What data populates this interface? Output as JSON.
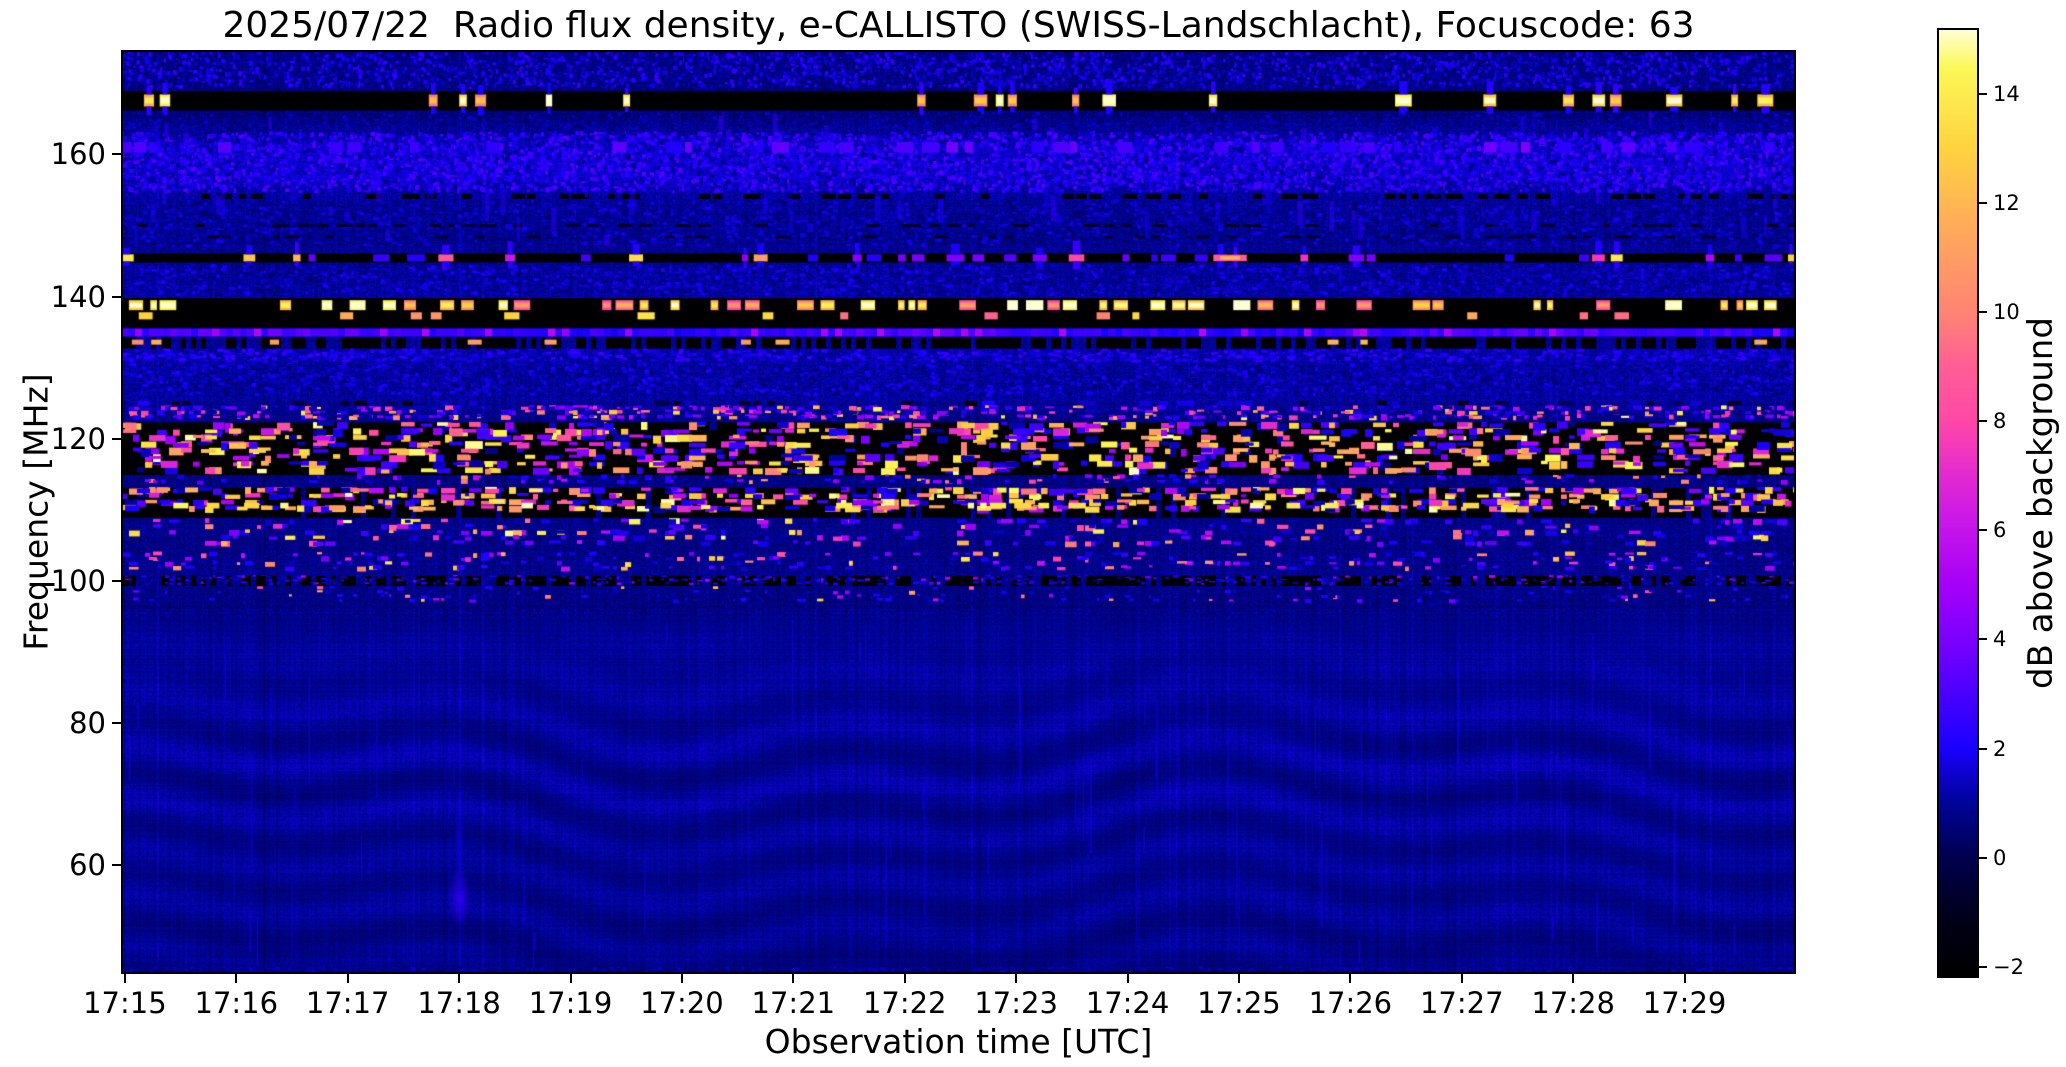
{
  "chart_data": {
    "type": "heatmap",
    "subtype": "radio-spectrogram",
    "title": "2025/07/22  Radio flux density, e-CALLISTO (SWISS-Landschlacht), Focuscode: 63",
    "xlabel": "Observation time [UTC]",
    "ylabel": "Frequency [MHz]",
    "x_ticks": [
      "17:15",
      "17:16",
      "17:17",
      "17:18",
      "17:19",
      "17:20",
      "17:21",
      "17:22",
      "17:23",
      "17:24",
      "17:25",
      "17:26",
      "17:27",
      "17:28",
      "17:29"
    ],
    "xlim_minutes_from_1715": [
      -0.035,
      15.0
    ],
    "y_ticks": [
      160,
      140,
      120,
      100,
      80,
      60
    ],
    "ylim_mhz": [
      44.7,
      174.7
    ],
    "grid": false,
    "colorbar": {
      "label": "dB above background",
      "ticks": [
        {
          "value": -2,
          "label": "−2"
        },
        {
          "value": 0,
          "label": "0"
        },
        {
          "value": 2,
          "label": "2"
        },
        {
          "value": 4,
          "label": "4"
        },
        {
          "value": 6,
          "label": "6"
        },
        {
          "value": 8,
          "label": "8"
        },
        {
          "value": 10,
          "label": "10"
        },
        {
          "value": 12,
          "label": "12"
        },
        {
          "value": 14,
          "label": "14"
        }
      ],
      "vmin": -2.2,
      "vmax": 15.2,
      "colormap_stops": [
        [
          -2.2,
          "#000000"
        ],
        [
          -1.2,
          "#000016"
        ],
        [
          0,
          "#00004f"
        ],
        [
          1,
          "#000498"
        ],
        [
          2,
          "#1a00ff"
        ],
        [
          3,
          "#4a00ff"
        ],
        [
          4,
          "#7c00ff"
        ],
        [
          5,
          "#a500f7"
        ],
        [
          6,
          "#c414eb"
        ],
        [
          7,
          "#e22ad0"
        ],
        [
          8,
          "#ff47a8"
        ],
        [
          9,
          "#ff5e95"
        ],
        [
          10,
          "#ff8473"
        ],
        [
          11.5,
          "#ffa95c"
        ],
        [
          13,
          "#ffd23f"
        ],
        [
          14.5,
          "#fcf856"
        ],
        [
          15.2,
          "#ffffd4"
        ]
      ]
    },
    "base": {
      "level_anchors_mhz_db": [
        [
          44.7,
          0.75
        ],
        [
          52,
          0.85
        ],
        [
          65,
          0.9
        ],
        [
          80,
          0.95
        ],
        [
          92,
          1.0
        ],
        [
          97,
          0.65
        ],
        [
          101,
          0.8
        ],
        [
          113,
          0.7
        ],
        [
          122,
          0.7
        ],
        [
          124,
          0.9
        ],
        [
          127,
          1.0
        ],
        [
          131,
          1.1
        ],
        [
          134,
          0.9
        ],
        [
          140,
          1.05
        ],
        [
          143,
          1.0
        ],
        [
          148,
          0.8
        ],
        [
          154,
          1.0
        ],
        [
          157,
          1.5
        ],
        [
          161,
          1.5
        ],
        [
          163,
          1.0
        ],
        [
          167,
          0.5
        ],
        [
          170,
          0.7
        ],
        [
          174.7,
          0.8
        ]
      ],
      "ripples": [
        {
          "f_center": 71,
          "f_sigma": 11,
          "amp": 0.32
        },
        {
          "f_center": 53,
          "f_sigma": 8,
          "amp": 0.25
        }
      ]
    },
    "bands": [
      {
        "type": "noise",
        "f": [
          169.2,
          174.7
        ],
        "density": 0.6,
        "v": [
          0.3,
          2.6
        ],
        "w": [
          2,
          4
        ],
        "h": [
          2,
          5
        ],
        "desc": "patchy blue noise at top edge"
      },
      {
        "type": "black",
        "f": [
          166.2,
          168.9
        ],
        "desc": "dark band ~167 MHz"
      },
      {
        "type": "dashrow",
        "f": 167.6,
        "h_mhz": 1.7,
        "density": 0.3,
        "pal": [
          [
            0.2,
            9,
            11
          ],
          [
            0.35,
            11,
            13.5
          ],
          [
            0.45,
            13.5,
            15.2
          ]
        ],
        "core": true,
        "glow": true,
        "desc": "intermittent bright transmitter bursts ~167.5 MHz"
      },
      {
        "type": "noise",
        "f": [
          163.4,
          166.1
        ],
        "density": 0.3,
        "v": [
          0.2,
          1.6
        ],
        "w": [
          2,
          5
        ],
        "h": [
          2,
          4
        ]
      },
      {
        "type": "noise",
        "f": [
          154.5,
          163.3
        ],
        "density": 0.9,
        "v": [
          0.7,
          3.2
        ],
        "w": [
          2,
          5
        ],
        "h": [
          2,
          5
        ],
        "desc": "broad noisy blue band 155-163 MHz"
      },
      {
        "type": "dashrow",
        "f": 161.0,
        "h_mhz": 1.5,
        "density": 0.4,
        "v": [
          2,
          4
        ]
      },
      {
        "type": "dashrow",
        "f": 154.1,
        "h_mhz": 0.7,
        "density": 0.55,
        "v": [
          -2,
          -1.3
        ],
        "desc": "dark dashed line ~154 MHz"
      },
      {
        "type": "noise",
        "f": [
          146.9,
          153.7
        ],
        "density": 0.42,
        "v": [
          0.3,
          1.9
        ],
        "w": [
          2,
          6
        ],
        "h": [
          2,
          4
        ]
      },
      {
        "type": "dashrow",
        "f": 150.0,
        "h_mhz": 0.4,
        "density": 0.5,
        "v": [
          -1.2,
          -0.4
        ]
      },
      {
        "type": "dashrow",
        "f": 148.4,
        "h_mhz": 0.4,
        "density": 0.4,
        "v": [
          -1.0,
          -0.3
        ]
      },
      {
        "type": "vstreaks",
        "f": [
          147,
          166.5
        ],
        "count": 140,
        "v": [
          1.2,
          2.6
        ],
        "w": [
          3,
          6
        ],
        "len": [
          8,
          30
        ]
      },
      {
        "type": "black",
        "f": [
          144.8,
          146.1
        ]
      },
      {
        "type": "dashrow",
        "f": 145.45,
        "h_mhz": 1.0,
        "density": 0.3,
        "pal": [
          [
            0.65,
            2,
            4.5
          ],
          [
            0.2,
            5,
            9
          ],
          [
            0.15,
            10,
            15
          ]
        ],
        "glow": true,
        "desc": "2 m amateur band line 145.5 MHz with intermittent bursts"
      },
      {
        "type": "dash",
        "f": 145.45,
        "t": 9.92,
        "dur_min": 0.3,
        "h_mhz": 0.9,
        "v": 9.0,
        "desc": "bright magenta burst near 17:24:55 on 145.5 MHz"
      },
      {
        "type": "noise",
        "f": [
          140.0,
          144.6
        ],
        "density": 0.5,
        "v": [
          0.4,
          2.1
        ],
        "w": [
          2,
          6
        ],
        "h": [
          2,
          4
        ]
      },
      {
        "type": "black",
        "f": [
          135.6,
          139.8
        ],
        "desc": "dark band 136-140 MHz"
      },
      {
        "type": "dashrow",
        "f": 138.8,
        "h_mhz": 1.4,
        "density": 0.5,
        "pal": [
          [
            0.3,
            8,
            10.5
          ],
          [
            0.4,
            10.5,
            13
          ],
          [
            0.3,
            13,
            15.2
          ]
        ],
        "core": true,
        "desc": "dense bright orange/white dashes ~138.8 MHz"
      },
      {
        "type": "dashrow",
        "f": 137.3,
        "h_mhz": 1.0,
        "density": 0.12,
        "v": [
          9,
          14
        ]
      },
      {
        "type": "stripe",
        "f": 134.95,
        "h_mhz": 1.1,
        "v": [
          2.1,
          3.4
        ],
        "seg_v": 4.8,
        "seg_density": 0.15,
        "desc": "continuous enhanced blue stripe ~135 MHz"
      },
      {
        "type": "black",
        "f": [
          132.7,
          134.3
        ],
        "gaps": 0.3
      },
      {
        "type": "dashrow",
        "f": 133.6,
        "h_mhz": 0.7,
        "density": 0.1,
        "v": [
          9,
          13
        ],
        "desc": "sparse orange dots ~133.6 MHz"
      },
      {
        "type": "noise",
        "f": [
          130.7,
          132.7
        ],
        "density": 0.75,
        "v": [
          0.8,
          2.7
        ],
        "w": [
          3,
          7
        ],
        "h": [
          2,
          4
        ]
      },
      {
        "type": "noise",
        "f": [
          125.9,
          130.7
        ],
        "density": 0.5,
        "v": [
          0.4,
          2.1
        ],
        "w": [
          2,
          6
        ],
        "h": [
          2,
          4
        ]
      },
      {
        "type": "dashrow",
        "f": 125.0,
        "h_mhz": 0.7,
        "density": 0.5,
        "v": [
          -1.8,
          2.4
        ]
      },
      {
        "type": "speckles",
        "f": [
          122.3,
          124.6
        ],
        "count": 650,
        "w": [
          3,
          9
        ],
        "h": [
          2,
          5
        ],
        "pal": [
          [
            0.45,
            0.6,
            2.8
          ],
          [
            0.25,
            3,
            6
          ],
          [
            0.18,
            7,
            10
          ],
          [
            0.12,
            10,
            15
          ]
        ],
        "desc": "dense narrow RFI strip 122-124.5 MHz"
      },
      {
        "type": "black",
        "f": [
          114.9,
          122.3
        ]
      },
      {
        "type": "speckles",
        "f": [
          114.9,
          122.3
        ],
        "count": 800,
        "w": [
          5,
          18
        ],
        "h": [
          3,
          8
        ],
        "pal": [
          [
            0.3,
            0.8,
            3
          ],
          [
            0.16,
            3,
            6.5
          ],
          [
            0.18,
            6.5,
            9.5
          ],
          [
            0.18,
            9.5,
            12.5
          ],
          [
            0.18,
            12.5,
            15.2
          ]
        ],
        "desc": "strong aeronautical-band RFI speckle 115-122 MHz"
      },
      {
        "type": "speckles",
        "f": [
          113.1,
          114.9
        ],
        "count": 170,
        "w": [
          3,
          9
        ],
        "h": [
          2,
          5
        ],
        "pal": [
          [
            0.7,
            0.6,
            2.6
          ],
          [
            0.2,
            3,
            6
          ],
          [
            0.1,
            8,
            12
          ]
        ]
      },
      {
        "type": "black",
        "f": [
          108.9,
          113.1
        ],
        "gaps": 0.1
      },
      {
        "type": "speckles",
        "f": [
          108.9,
          113.1
        ],
        "count": 620,
        "w": [
          5,
          16
        ],
        "h": [
          3,
          7
        ],
        "pal": [
          [
            0.3,
            0.8,
            3
          ],
          [
            0.15,
            3,
            6.5
          ],
          [
            0.15,
            6.5,
            9.5
          ],
          [
            0.2,
            9.5,
            12.5
          ],
          [
            0.2,
            12.5,
            15.2
          ]
        ],
        "desc": "strong RFI speckle 109-113 MHz"
      },
      {
        "type": "dashrow",
        "f": 110.6,
        "h_mhz": 0.8,
        "density": 0.2,
        "v": [
          13,
          15.2
        ],
        "desc": "bright white dashes ~110.6 MHz"
      },
      {
        "type": "speckles",
        "f": [
          104.2,
          108.7
        ],
        "count": 320,
        "w": [
          4,
          12
        ],
        "h": [
          3,
          6
        ],
        "pal": [
          [
            0.55,
            0.6,
            2.8
          ],
          [
            0.2,
            3,
            6
          ],
          [
            0.12,
            7,
            10
          ],
          [
            0.13,
            10,
            15
          ]
        ]
      },
      {
        "type": "speckles",
        "f": [
          100.9,
          104.0
        ],
        "count": 280,
        "w": [
          3,
          10
        ],
        "h": [
          2,
          5
        ],
        "pal": [
          [
            0.6,
            0.6,
            2.6
          ],
          [
            0.22,
            3,
            6
          ],
          [
            0.1,
            7,
            10
          ],
          [
            0.08,
            10,
            14
          ]
        ]
      },
      {
        "type": "black",
        "f": [
          99.3,
          100.7
        ],
        "gaps": 0.35
      },
      {
        "type": "speckles",
        "f": [
          99.3,
          100.7
        ],
        "count": 450,
        "w": [
          2,
          6
        ],
        "h": [
          1,
          3
        ],
        "pal": [
          [
            0.85,
            0.8,
            2.6
          ],
          [
            0.15,
            3,
            5.5
          ]
        ],
        "desc": "dense faint speckle stripe ~100 MHz"
      },
      {
        "type": "speckles",
        "f": [
          96.4,
          99.2
        ],
        "count": 220,
        "w": [
          2,
          7
        ],
        "h": [
          2,
          4
        ],
        "pal": [
          [
            0.8,
            0.6,
            2.4
          ],
          [
            0.14,
            3,
            6
          ],
          [
            0.06,
            8,
            13
          ]
        ]
      },
      {
        "type": "vstreaks",
        "f": [
          45.5,
          95
        ],
        "count": 160,
        "v": [
          1.1,
          2.0
        ],
        "w": [
          1,
          2
        ],
        "len": [
          15,
          110
        ],
        "desc": "faint vertical streaks in smooth low-frequency region"
      },
      {
        "type": "blob",
        "t": 3.0,
        "f": 55.5,
        "dur_min": 0.1,
        "rf_mhz": 4.5,
        "v": 2.6,
        "desc": "faint blue enhancement near 17:18 at ~55 MHz"
      },
      {
        "type": "blob",
        "t": 3.0,
        "f": 63,
        "dur_min": 0.05,
        "rf_mhz": 9,
        "v": 1.5
      },
      {
        "type": "noise",
        "f": [
          44.8,
          45.8
        ],
        "density": 0.3,
        "v": [
          0.6,
          1.6
        ],
        "w": [
          2,
          5
        ],
        "h": [
          1,
          3
        ]
      }
    ]
  }
}
